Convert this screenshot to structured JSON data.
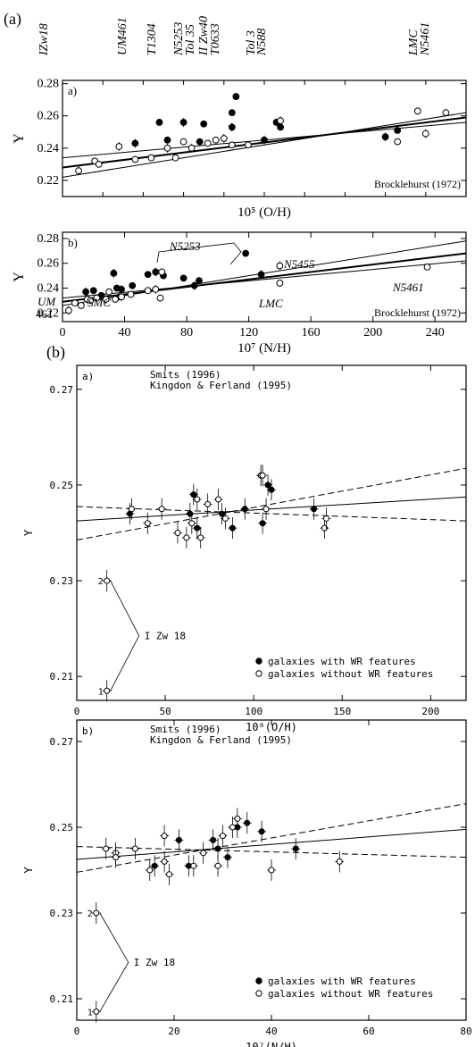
{
  "figure": {
    "label_a": "(a)",
    "label_b": "(b)",
    "top_labels": [
      "IZw18",
      "UM461",
      "T1304",
      "N5253",
      "Tol 35",
      "II Zw40",
      "T0633",
      "Tol 3",
      "N588",
      "LMC",
      "N5461"
    ]
  },
  "chart_data": [
    {
      "type": "scatter",
      "panel": "a",
      "ylabel": "Y",
      "xlabel": "10⁵ (O/H)",
      "xlim": [
        0,
        50
      ],
      "ylim": [
        0.21,
        0.282
      ],
      "yticks": [
        "0.22",
        "0.24",
        "0.26",
        "0.28"
      ],
      "annotation": "Brocklehurst (1972)",
      "series": [
        {
          "marker": "filled",
          "points": [
            [
              9,
              0.243
            ],
            [
              12,
              0.256
            ],
            [
              13,
              0.245
            ],
            [
              15,
              0.256
            ],
            [
              17,
              0.244
            ],
            [
              17.5,
              0.255
            ],
            [
              21,
              0.253
            ],
            [
              21,
              0.262
            ],
            [
              21.5,
              0.272
            ],
            [
              25,
              0.245
            ],
            [
              26.5,
              0.256
            ],
            [
              27,
              0.253
            ],
            [
              40,
              0.247
            ],
            [
              41.5,
              0.251
            ]
          ]
        },
        {
          "marker": "open",
          "points": [
            [
              2,
              0.226
            ],
            [
              4,
              0.232
            ],
            [
              4.5,
              0.23
            ],
            [
              7,
              0.241
            ],
            [
              9,
              0.233
            ],
            [
              11,
              0.234
            ],
            [
              13,
              0.24
            ],
            [
              14,
              0.234
            ],
            [
              15,
              0.244
            ],
            [
              16,
              0.24
            ],
            [
              18,
              0.243
            ],
            [
              19,
              0.245
            ],
            [
              20,
              0.246
            ],
            [
              21,
              0.242
            ],
            [
              23,
              0.242
            ],
            [
              27,
              0.257
            ],
            [
              41.5,
              0.244
            ],
            [
              44,
              0.263
            ],
            [
              45,
              0.249
            ],
            [
              47.5,
              0.262
            ]
          ]
        }
      ],
      "fits": [
        [
          [
            0,
            0.228
          ],
          [
            50,
            0.259
          ]
        ],
        [
          [
            0,
            0.234
          ],
          [
            50,
            0.256
          ]
        ],
        [
          [
            0,
            0.222
          ],
          [
            50,
            0.262
          ]
        ]
      ]
    },
    {
      "type": "scatter",
      "panel": "b",
      "ylabel": "Y",
      "xlabel": "10⁷ (N/H)",
      "xlim": [
        0,
        260
      ],
      "ylim": [
        0.213,
        0.285
      ],
      "xticks": [
        0,
        40,
        80,
        120,
        160,
        200,
        240
      ],
      "yticks": [
        "0.22",
        "0.24",
        "0.26",
        "0.28"
      ],
      "annotations": [
        "N5253",
        "N5455",
        "UM",
        "461",
        "SMC",
        "LMC",
        "N5461",
        "Brocklehurst (1972)"
      ],
      "series": [
        {
          "marker": "filled",
          "points": [
            [
              15,
              0.237
            ],
            [
              20,
              0.238
            ],
            [
              25,
              0.234
            ],
            [
              33,
              0.252
            ],
            [
              35,
              0.24
            ],
            [
              37,
              0.233
            ],
            [
              38,
              0.239
            ],
            [
              45,
              0.242
            ],
            [
              55,
              0.251
            ],
            [
              60,
              0.253
            ],
            [
              65,
              0.25
            ],
            [
              78,
              0.248
            ],
            [
              85,
              0.242
            ],
            [
              88,
              0.246
            ],
            [
              118,
              0.268
            ],
            [
              128,
              0.251
            ]
          ]
        },
        {
          "marker": "open",
          "points": [
            [
              4,
              0.222
            ],
            [
              8,
              0.228
            ],
            [
              12,
              0.226
            ],
            [
              16,
              0.231
            ],
            [
              18,
              0.23
            ],
            [
              22,
              0.232
            ],
            [
              28,
              0.231
            ],
            [
              30,
              0.237
            ],
            [
              34,
              0.231
            ],
            [
              38,
              0.233
            ],
            [
              44,
              0.235
            ],
            [
              55,
              0.238
            ],
            [
              60,
              0.239
            ],
            [
              63,
              0.232
            ],
            [
              64,
              0.253
            ],
            [
              140,
              0.258
            ],
            [
              140,
              0.244
            ],
            [
              235,
              0.257
            ]
          ]
        }
      ],
      "fits": [
        [
          [
            0,
            0.229
          ],
          [
            260,
            0.268
          ]
        ],
        [
          [
            0,
            0.232
          ],
          [
            260,
            0.262
          ]
        ],
        [
          [
            0,
            0.226
          ],
          [
            260,
            0.278
          ]
        ]
      ]
    },
    {
      "type": "scatter",
      "panel": "a",
      "ylabel": "Y",
      "xlabel": "10⁶(O/H)",
      "xlim": [
        0,
        220
      ],
      "ylim": [
        0.205,
        0.275
      ],
      "xticks": [
        0,
        50,
        100,
        150,
        200
      ],
      "yticks": [
        "0.21",
        "0.23",
        "0.25",
        "0.27"
      ],
      "legend": [
        "galaxies with WR features",
        "galaxies without WR features"
      ],
      "legend_position": "bottom-right",
      "annotations": [
        "Smits (1996)",
        "Kingdon & Ferland (1995)",
        "I Zw 18",
        "1",
        "2"
      ],
      "series": [
        {
          "name": "galaxies with WR features",
          "marker": "filled",
          "points": [
            [
              30,
              0.244
            ],
            [
              64,
              0.244
            ],
            [
              66,
              0.248
            ],
            [
              68,
              0.241
            ],
            [
              82,
              0.244
            ],
            [
              88,
              0.241
            ],
            [
              95,
              0.245
            ],
            [
              105,
              0.242
            ],
            [
              108,
              0.25
            ],
            [
              110,
              0.249
            ],
            [
              134,
              0.245
            ]
          ]
        },
        {
          "name": "galaxies without WR features",
          "marker": "open",
          "points": [
            [
              17,
              0.207
            ],
            [
              17,
              0.23
            ],
            [
              31,
              0.245
            ],
            [
              40,
              0.242
            ],
            [
              48,
              0.245
            ],
            [
              57,
              0.24
            ],
            [
              62,
              0.239
            ],
            [
              65,
              0.242
            ],
            [
              68,
              0.247
            ],
            [
              70,
              0.239
            ],
            [
              74,
              0.246
            ],
            [
              80,
              0.247
            ],
            [
              84,
              0.243
            ],
            [
              104,
              0.252
            ],
            [
              105,
              0.252
            ],
            [
              107,
              0.245
            ],
            [
              140,
              0.241
            ],
            [
              141,
              0.243
            ]
          ]
        }
      ],
      "fits": [
        {
          "style": "solid",
          "line": [
            [
              0,
              0.2425
            ],
            [
              220,
              0.2475
            ]
          ]
        },
        {
          "style": "dashed",
          "line": [
            [
              0,
              0.2385
            ],
            [
              220,
              0.2535
            ]
          ]
        },
        {
          "style": "dashed",
          "line": [
            [
              0,
              0.2455
            ],
            [
              220,
              0.2425
            ]
          ]
        }
      ]
    },
    {
      "type": "scatter",
      "panel": "b",
      "ylabel": "Y",
      "xlabel": "10⁷(N/H)",
      "xlim": [
        0,
        80
      ],
      "ylim": [
        0.205,
        0.275
      ],
      "xticks": [
        0,
        20,
        40,
        60,
        80
      ],
      "yticks": [
        "0.21",
        "0.23",
        "0.25",
        "0.27"
      ],
      "legend": [
        "galaxies with WR features",
        "galaxies without WR features"
      ],
      "legend_position": "bottom-right",
      "annotations": [
        "Smits (1996)",
        "Kingdon & Ferland (1995)",
        "I Zw 18",
        "1",
        "2"
      ],
      "series": [
        {
          "name": "galaxies with WR features",
          "marker": "filled",
          "points": [
            [
              16,
              0.241
            ],
            [
              21,
              0.247
            ],
            [
              23,
              0.241
            ],
            [
              28,
              0.247
            ],
            [
              29,
              0.245
            ],
            [
              31,
              0.243
            ],
            [
              33,
              0.25
            ],
            [
              35,
              0.251
            ],
            [
              38,
              0.249
            ],
            [
              45,
              0.245
            ]
          ]
        },
        {
          "name": "galaxies without WR features",
          "marker": "open",
          "points": [
            [
              4,
              0.207
            ],
            [
              4,
              0.23
            ],
            [
              6,
              0.245
            ],
            [
              8,
              0.244
            ],
            [
              8,
              0.243
            ],
            [
              12,
              0.245
            ],
            [
              15,
              0.24
            ],
            [
              18,
              0.248
            ],
            [
              18,
              0.242
            ],
            [
              19,
              0.239
            ],
            [
              24,
              0.241
            ],
            [
              26,
              0.244
            ],
            [
              29,
              0.241
            ],
            [
              30,
              0.248
            ],
            [
              32,
              0.25
            ],
            [
              33,
              0.252
            ],
            [
              40,
              0.24
            ],
            [
              54,
              0.242
            ]
          ]
        }
      ],
      "fits": [
        {
          "style": "solid",
          "line": [
            [
              0,
              0.2425
            ],
            [
              80,
              0.2495
            ]
          ]
        },
        {
          "style": "dashed",
          "line": [
            [
              0,
              0.2395
            ],
            [
              80,
              0.2555
            ]
          ]
        },
        {
          "style": "dashed",
          "line": [
            [
              0,
              0.2455
            ],
            [
              80,
              0.243
            ]
          ]
        }
      ]
    }
  ]
}
